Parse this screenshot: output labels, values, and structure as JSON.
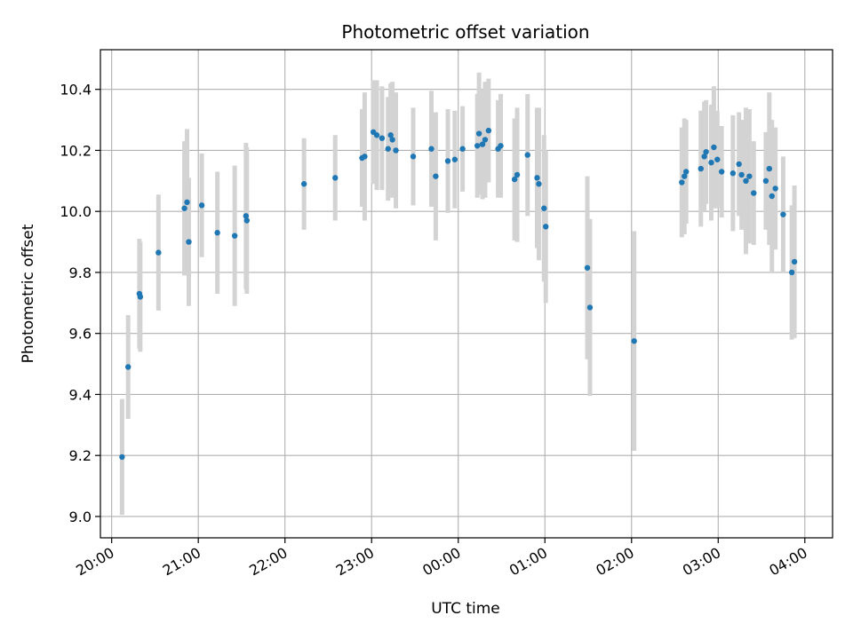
{
  "chart_data": {
    "type": "scatter",
    "title": "Photometric offset variation",
    "xlabel": "UTC time",
    "ylabel": "Photometric offset",
    "x_unit": "hours since 20:00 UTC",
    "xlim": [
      -0.13,
      8.32
    ],
    "ylim": [
      8.93,
      10.53
    ],
    "xticks": [
      0,
      1,
      2,
      3,
      4,
      5,
      6,
      7,
      8
    ],
    "xticklabels": [
      "20:00",
      "21:00",
      "22:00",
      "23:00",
      "00:00",
      "01:00",
      "02:00",
      "03:00",
      "04:00"
    ],
    "yticks": [
      9.0,
      9.2,
      9.4,
      9.6,
      9.8,
      10.0,
      10.2,
      10.4
    ],
    "yticklabels": [
      "9.0",
      "9.2",
      "9.4",
      "9.6",
      "9.8",
      "10.0",
      "10.2",
      "10.4"
    ],
    "grid": true,
    "point_color": "#1f77b4",
    "errorbar_color": "#d3d3d3",
    "series": [
      {
        "points": [
          [
            0.12,
            9.195,
            0.19
          ],
          [
            0.19,
            9.49,
            0.17
          ],
          [
            0.32,
            9.73,
            0.18
          ],
          [
            0.33,
            9.72,
            0.18
          ],
          [
            0.54,
            9.865,
            0.19
          ],
          [
            0.84,
            10.01,
            0.22
          ],
          [
            0.87,
            10.03,
            0.24
          ],
          [
            0.89,
            9.9,
            0.21
          ],
          [
            1.04,
            10.02,
            0.17
          ],
          [
            1.22,
            9.93,
            0.2
          ],
          [
            1.42,
            9.92,
            0.23
          ],
          [
            1.55,
            9.985,
            0.24
          ],
          [
            1.56,
            9.97,
            0.24
          ],
          [
            2.22,
            10.09,
            0.15
          ],
          [
            2.58,
            10.11,
            0.14
          ],
          [
            2.89,
            10.175,
            0.16
          ],
          [
            2.92,
            10.18,
            0.21
          ],
          [
            3.02,
            10.26,
            0.17
          ],
          [
            3.06,
            10.25,
            0.18
          ],
          [
            3.12,
            10.24,
            0.17
          ],
          [
            3.19,
            10.205,
            0.17
          ],
          [
            3.22,
            10.25,
            0.17
          ],
          [
            3.24,
            10.235,
            0.19
          ],
          [
            3.28,
            10.2,
            0.19
          ],
          [
            3.48,
            10.18,
            0.16
          ],
          [
            3.69,
            10.205,
            0.19
          ],
          [
            3.74,
            10.115,
            0.21
          ],
          [
            3.88,
            10.165,
            0.17
          ],
          [
            3.96,
            10.17,
            0.16
          ],
          [
            4.05,
            10.205,
            0.14
          ],
          [
            4.22,
            10.215,
            0.17
          ],
          [
            4.24,
            10.255,
            0.2
          ],
          [
            4.28,
            10.22,
            0.18
          ],
          [
            4.31,
            10.235,
            0.19
          ],
          [
            4.35,
            10.265,
            0.17
          ],
          [
            4.46,
            10.205,
            0.16
          ],
          [
            4.49,
            10.215,
            0.17
          ],
          [
            4.65,
            10.105,
            0.2
          ],
          [
            4.68,
            10.12,
            0.22
          ],
          [
            4.8,
            10.185,
            0.2
          ],
          [
            4.91,
            10.11,
            0.23
          ],
          [
            4.93,
            10.09,
            0.25
          ],
          [
            4.99,
            10.01,
            0.24
          ],
          [
            5.01,
            9.95,
            0.25
          ],
          [
            5.49,
            9.815,
            0.3
          ],
          [
            5.52,
            9.685,
            0.29
          ],
          [
            6.03,
            9.575,
            0.36
          ],
          [
            6.58,
            10.095,
            0.18
          ],
          [
            6.61,
            10.115,
            0.19
          ],
          [
            6.63,
            10.13,
            0.17
          ],
          [
            6.8,
            10.14,
            0.19
          ],
          [
            6.84,
            10.18,
            0.18
          ],
          [
            6.86,
            10.195,
            0.17
          ],
          [
            6.92,
            10.16,
            0.19
          ],
          [
            6.95,
            10.21,
            0.2
          ],
          [
            6.99,
            10.17,
            0.16
          ],
          [
            7.04,
            10.13,
            0.15
          ],
          [
            7.17,
            10.125,
            0.19
          ],
          [
            7.24,
            10.155,
            0.17
          ],
          [
            7.27,
            10.12,
            0.18
          ],
          [
            7.32,
            10.1,
            0.24
          ],
          [
            7.36,
            10.115,
            0.22
          ],
          [
            7.41,
            10.06,
            0.17
          ],
          [
            7.55,
            10.1,
            0.16
          ],
          [
            7.59,
            10.14,
            0.25
          ],
          [
            7.62,
            10.05,
            0.25
          ],
          [
            7.66,
            10.075,
            0.2
          ],
          [
            7.75,
            9.99,
            0.19
          ],
          [
            7.85,
            9.8,
            0.22
          ],
          [
            7.88,
            9.835,
            0.25
          ]
        ]
      }
    ]
  }
}
